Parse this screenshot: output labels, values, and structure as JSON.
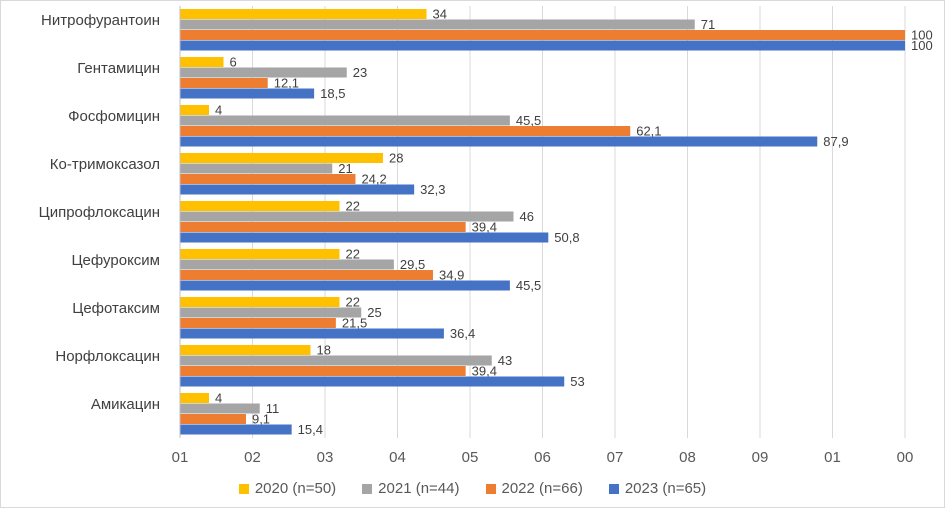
{
  "chart_data": {
    "type": "bar",
    "orientation": "horizontal",
    "categories": [
      "Нитрофурантоин",
      "Гентамицин",
      "Фосфомицин",
      "Ко-тримоксазол",
      "Ципрофлоксацин",
      "Цефуроксим",
      "Цефотаксим",
      "Норфлоксацин",
      "Амикацин"
    ],
    "series": [
      {
        "name": "2020 (n=50)",
        "color": "#FFC000",
        "values": [
          34,
          6,
          4,
          28,
          22,
          22,
          22,
          18,
          4
        ],
        "labels": [
          "34",
          "6",
          "4",
          "28",
          "22",
          "22",
          "22",
          "18",
          "4"
        ]
      },
      {
        "name": "2021 (n=44)",
        "color": "#A5A5A5",
        "values": [
          71,
          23,
          45.5,
          21,
          46,
          29.5,
          25,
          43,
          11
        ],
        "labels": [
          "71",
          "23",
          "45,5",
          "21",
          "46",
          "29,5",
          "25",
          "43",
          "11"
        ]
      },
      {
        "name": "2022 (n=66)",
        "color": "#ED7D31",
        "values": [
          100,
          12.1,
          62.1,
          24.2,
          39.4,
          34.9,
          21.5,
          39.4,
          9.1
        ],
        "labels": [
          "100",
          "12,1",
          "62,1",
          "24,2",
          "39,4",
          "34,9",
          "21,5",
          "39,4",
          "9,1"
        ]
      },
      {
        "name": "2023 (n=65)",
        "color": "#4472C4",
        "values": [
          100,
          18.5,
          87.9,
          32.3,
          50.8,
          45.5,
          36.4,
          53,
          15.4
        ],
        "labels": [
          "100",
          "18,5",
          "87,9",
          "32,3",
          "50,8",
          "45,5",
          "36,4",
          "53",
          "15,4"
        ]
      }
    ],
    "xlim": [
      0,
      100
    ],
    "x_ticks": [
      "01",
      "02",
      "03",
      "04",
      "05",
      "06",
      "07",
      "08",
      "09",
      "01",
      "00"
    ],
    "grid": "vertical",
    "legend": "bottom",
    "title": "",
    "xlabel": "",
    "ylabel": ""
  }
}
